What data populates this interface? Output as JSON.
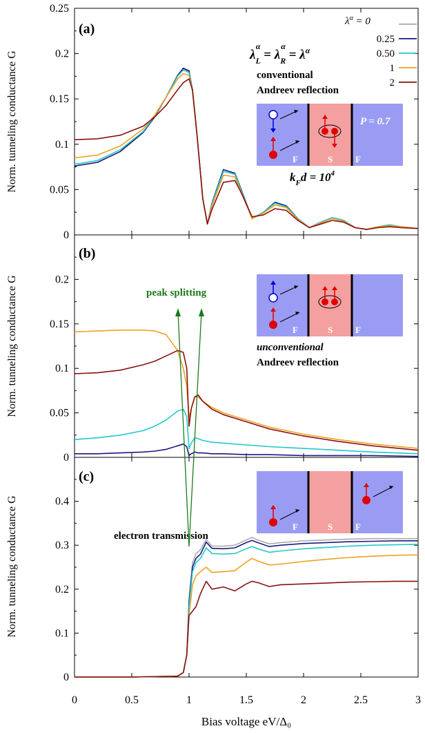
{
  "figure": {
    "xlabel": "Bias voltage eV/Δ₀",
    "ylabel": "Norm. tunneling conductance G",
    "xticks": [
      "0",
      "0.5",
      "1",
      "1.5",
      "2",
      "2.5",
      "3"
    ]
  },
  "legend": {
    "title": "λ^α =",
    "entries": [
      {
        "label": "0",
        "color": "#aaaaaa"
      },
      {
        "label": "0.25",
        "color": "#1a1a80"
      },
      {
        "label": "0.50",
        "color": "#22c8c8"
      },
      {
        "label": "1",
        "color": "#f0a020"
      },
      {
        "label": "2",
        "color": "#8b1010"
      }
    ]
  },
  "colors": {
    "ferromagnet": "#9a9cf4",
    "superconductor": "#f4a0a0",
    "peak_arrow": "#1a7a1a",
    "particle": "#e00000",
    "hole_arrow": "#0000d0"
  },
  "panels": [
    {
      "label": "(a)",
      "equation": "λLα = λRα = λα",
      "note_line1": "conventional",
      "note_line2": "Andreev reflection",
      "inset_labels": [
        "F",
        "S",
        "F"
      ],
      "polarization": "P = 0.7",
      "kfd": "kFd = 10⁴",
      "yticks": [
        "0",
        "0.05",
        "0.1",
        "0.15",
        "0.2",
        "0.25"
      ]
    },
    {
      "label": "(b)",
      "peak_label": "peak splitting",
      "note_line1": "unconventional",
      "note_line2": "Andreev reflection",
      "inset_labels": [
        "F",
        "S",
        "F"
      ],
      "yticks": [
        "0",
        "0.05",
        "0.1",
        "0.15",
        "0.2"
      ]
    },
    {
      "label": "(c)",
      "note_line1": "electron transmission",
      "inset_labels": [
        "F",
        "S",
        "F"
      ],
      "yticks": [
        "0",
        "0.1",
        "0.2",
        "0.3",
        "0.4"
      ]
    }
  ],
  "chart_data": [
    {
      "type": "line",
      "panel": "(a)",
      "xlim": [
        0,
        3
      ],
      "ylim": [
        0,
        0.25
      ],
      "x": [
        0,
        0.2,
        0.4,
        0.6,
        0.7,
        0.8,
        0.9,
        0.95,
        1.0,
        1.03,
        1.07,
        1.12,
        1.16,
        1.2,
        1.3,
        1.4,
        1.45,
        1.55,
        1.65,
        1.75,
        1.85,
        1.95,
        2.05,
        2.15,
        2.25,
        2.35,
        2.45,
        2.55,
        2.65,
        2.75,
        2.85,
        3.0
      ],
      "series": [
        {
          "name": "0",
          "values": [
            0.076,
            0.08,
            0.092,
            0.113,
            0.13,
            0.152,
            0.176,
            0.183,
            0.18,
            0.16,
            0.11,
            0.04,
            0.012,
            0.035,
            0.072,
            0.068,
            0.052,
            0.018,
            0.025,
            0.036,
            0.032,
            0.018,
            0.008,
            0.014,
            0.019,
            0.016,
            0.008,
            0.006,
            0.009,
            0.011,
            0.009,
            0.007
          ]
        },
        {
          "name": "0.25",
          "values": [
            0.076,
            0.08,
            0.092,
            0.113,
            0.13,
            0.152,
            0.176,
            0.184,
            0.181,
            0.16,
            0.11,
            0.04,
            0.012,
            0.035,
            0.072,
            0.068,
            0.052,
            0.018,
            0.025,
            0.036,
            0.032,
            0.018,
            0.008,
            0.014,
            0.019,
            0.016,
            0.008,
            0.006,
            0.009,
            0.011,
            0.009,
            0.007
          ]
        },
        {
          "name": "0.50",
          "values": [
            0.078,
            0.082,
            0.094,
            0.114,
            0.131,
            0.152,
            0.175,
            0.182,
            0.179,
            0.16,
            0.11,
            0.04,
            0.012,
            0.034,
            0.07,
            0.067,
            0.051,
            0.018,
            0.025,
            0.035,
            0.031,
            0.018,
            0.008,
            0.014,
            0.019,
            0.016,
            0.008,
            0.006,
            0.009,
            0.011,
            0.009,
            0.007
          ]
        },
        {
          "name": "1",
          "values": [
            0.085,
            0.088,
            0.098,
            0.117,
            0.132,
            0.152,
            0.172,
            0.178,
            0.176,
            0.158,
            0.11,
            0.04,
            0.012,
            0.032,
            0.066,
            0.064,
            0.049,
            0.018,
            0.024,
            0.033,
            0.03,
            0.017,
            0.008,
            0.013,
            0.018,
            0.015,
            0.008,
            0.006,
            0.009,
            0.01,
            0.009,
            0.007
          ]
        },
        {
          "name": "2",
          "values": [
            0.105,
            0.106,
            0.11,
            0.12,
            0.13,
            0.143,
            0.16,
            0.168,
            0.172,
            0.16,
            0.11,
            0.04,
            0.012,
            0.028,
            0.058,
            0.06,
            0.048,
            0.02,
            0.022,
            0.029,
            0.027,
            0.016,
            0.008,
            0.012,
            0.016,
            0.014,
            0.008,
            0.006,
            0.008,
            0.009,
            0.008,
            0.007
          ]
        }
      ]
    },
    {
      "type": "line",
      "panel": "(b)",
      "xlim": [
        0,
        3
      ],
      "ylim": [
        0,
        0.25
      ],
      "x": [
        0,
        0.2,
        0.4,
        0.6,
        0.7,
        0.8,
        0.9,
        0.95,
        0.98,
        1.0,
        1.02,
        1.05,
        1.08,
        1.12,
        1.2,
        1.3,
        1.5,
        1.7,
        2.0,
        2.3,
        2.6,
        3.0
      ],
      "series": [
        {
          "name": "0",
          "values": [
            0,
            0,
            0,
            0,
            0,
            0,
            0,
            0,
            0,
            0,
            0,
            0,
            0,
            0,
            0,
            0,
            0,
            0,
            0,
            0,
            0,
            0
          ]
        },
        {
          "name": "0.25",
          "values": [
            0.004,
            0.004,
            0.005,
            0.006,
            0.007,
            0.009,
            0.013,
            0.015,
            0.012,
            0.002,
            0.004,
            0.006,
            0.005,
            0.005,
            0.004,
            0.004,
            0.003,
            0.003,
            0.002,
            0.002,
            0.002,
            0.001
          ]
        },
        {
          "name": "0.50",
          "values": [
            0.02,
            0.022,
            0.025,
            0.03,
            0.035,
            0.042,
            0.052,
            0.054,
            0.046,
            0.01,
            0.016,
            0.022,
            0.021,
            0.019,
            0.017,
            0.016,
            0.014,
            0.012,
            0.01,
            0.008,
            0.006,
            0.004
          ]
        },
        {
          "name": "1",
          "values": [
            0.141,
            0.142,
            0.143,
            0.143,
            0.142,
            0.138,
            0.12,
            0.1,
            0.08,
            0.045,
            0.055,
            0.068,
            0.068,
            0.063,
            0.056,
            0.05,
            0.042,
            0.034,
            0.026,
            0.02,
            0.015,
            0.01
          ]
        },
        {
          "name": "2",
          "values": [
            0.094,
            0.095,
            0.098,
            0.104,
            0.108,
            0.114,
            0.12,
            0.118,
            0.1,
            0.035,
            0.055,
            0.068,
            0.07,
            0.063,
            0.054,
            0.048,
            0.04,
            0.032,
            0.024,
            0.018,
            0.013,
            0.008
          ]
        }
      ]
    },
    {
      "type": "line",
      "panel": "(c)",
      "xlim": [
        0,
        3
      ],
      "ylim": [
        0,
        0.5
      ],
      "x": [
        0,
        0.5,
        0.9,
        0.95,
        0.98,
        1.0,
        1.03,
        1.06,
        1.1,
        1.15,
        1.2,
        1.3,
        1.4,
        1.5,
        1.55,
        1.6,
        1.7,
        1.8,
        2.0,
        2.2,
        2.4,
        2.6,
        2.8,
        3.0
      ],
      "series": [
        {
          "name": "0",
          "values": [
            0,
            0,
            0.002,
            0.01,
            0.05,
            0.18,
            0.26,
            0.28,
            0.29,
            0.313,
            0.298,
            0.298,
            0.3,
            0.312,
            0.318,
            0.312,
            0.303,
            0.306,
            0.31,
            0.312,
            0.314,
            0.315,
            0.315,
            0.315
          ]
        },
        {
          "name": "0.25",
          "values": [
            0,
            0,
            0.002,
            0.01,
            0.05,
            0.17,
            0.25,
            0.27,
            0.28,
            0.307,
            0.293,
            0.292,
            0.294,
            0.306,
            0.311,
            0.306,
            0.297,
            0.3,
            0.304,
            0.306,
            0.308,
            0.309,
            0.31,
            0.31
          ]
        },
        {
          "name": "0.50",
          "values": [
            0,
            0,
            0.002,
            0.01,
            0.05,
            0.16,
            0.24,
            0.26,
            0.27,
            0.294,
            0.281,
            0.28,
            0.281,
            0.292,
            0.297,
            0.292,
            0.284,
            0.287,
            0.292,
            0.295,
            0.298,
            0.3,
            0.301,
            0.302
          ]
        },
        {
          "name": "1",
          "values": [
            0,
            0,
            0.002,
            0.01,
            0.05,
            0.14,
            0.21,
            0.23,
            0.24,
            0.25,
            0.238,
            0.24,
            0.242,
            0.262,
            0.27,
            0.264,
            0.255,
            0.257,
            0.263,
            0.268,
            0.272,
            0.275,
            0.277,
            0.278
          ]
        },
        {
          "name": "2",
          "values": [
            0,
            0,
            0.002,
            0.01,
            0.05,
            0.14,
            0.15,
            0.16,
            0.19,
            0.218,
            0.2,
            0.205,
            0.196,
            0.212,
            0.218,
            0.215,
            0.206,
            0.21,
            0.212,
            0.214,
            0.216,
            0.217,
            0.218,
            0.218
          ]
        }
      ]
    }
  ]
}
